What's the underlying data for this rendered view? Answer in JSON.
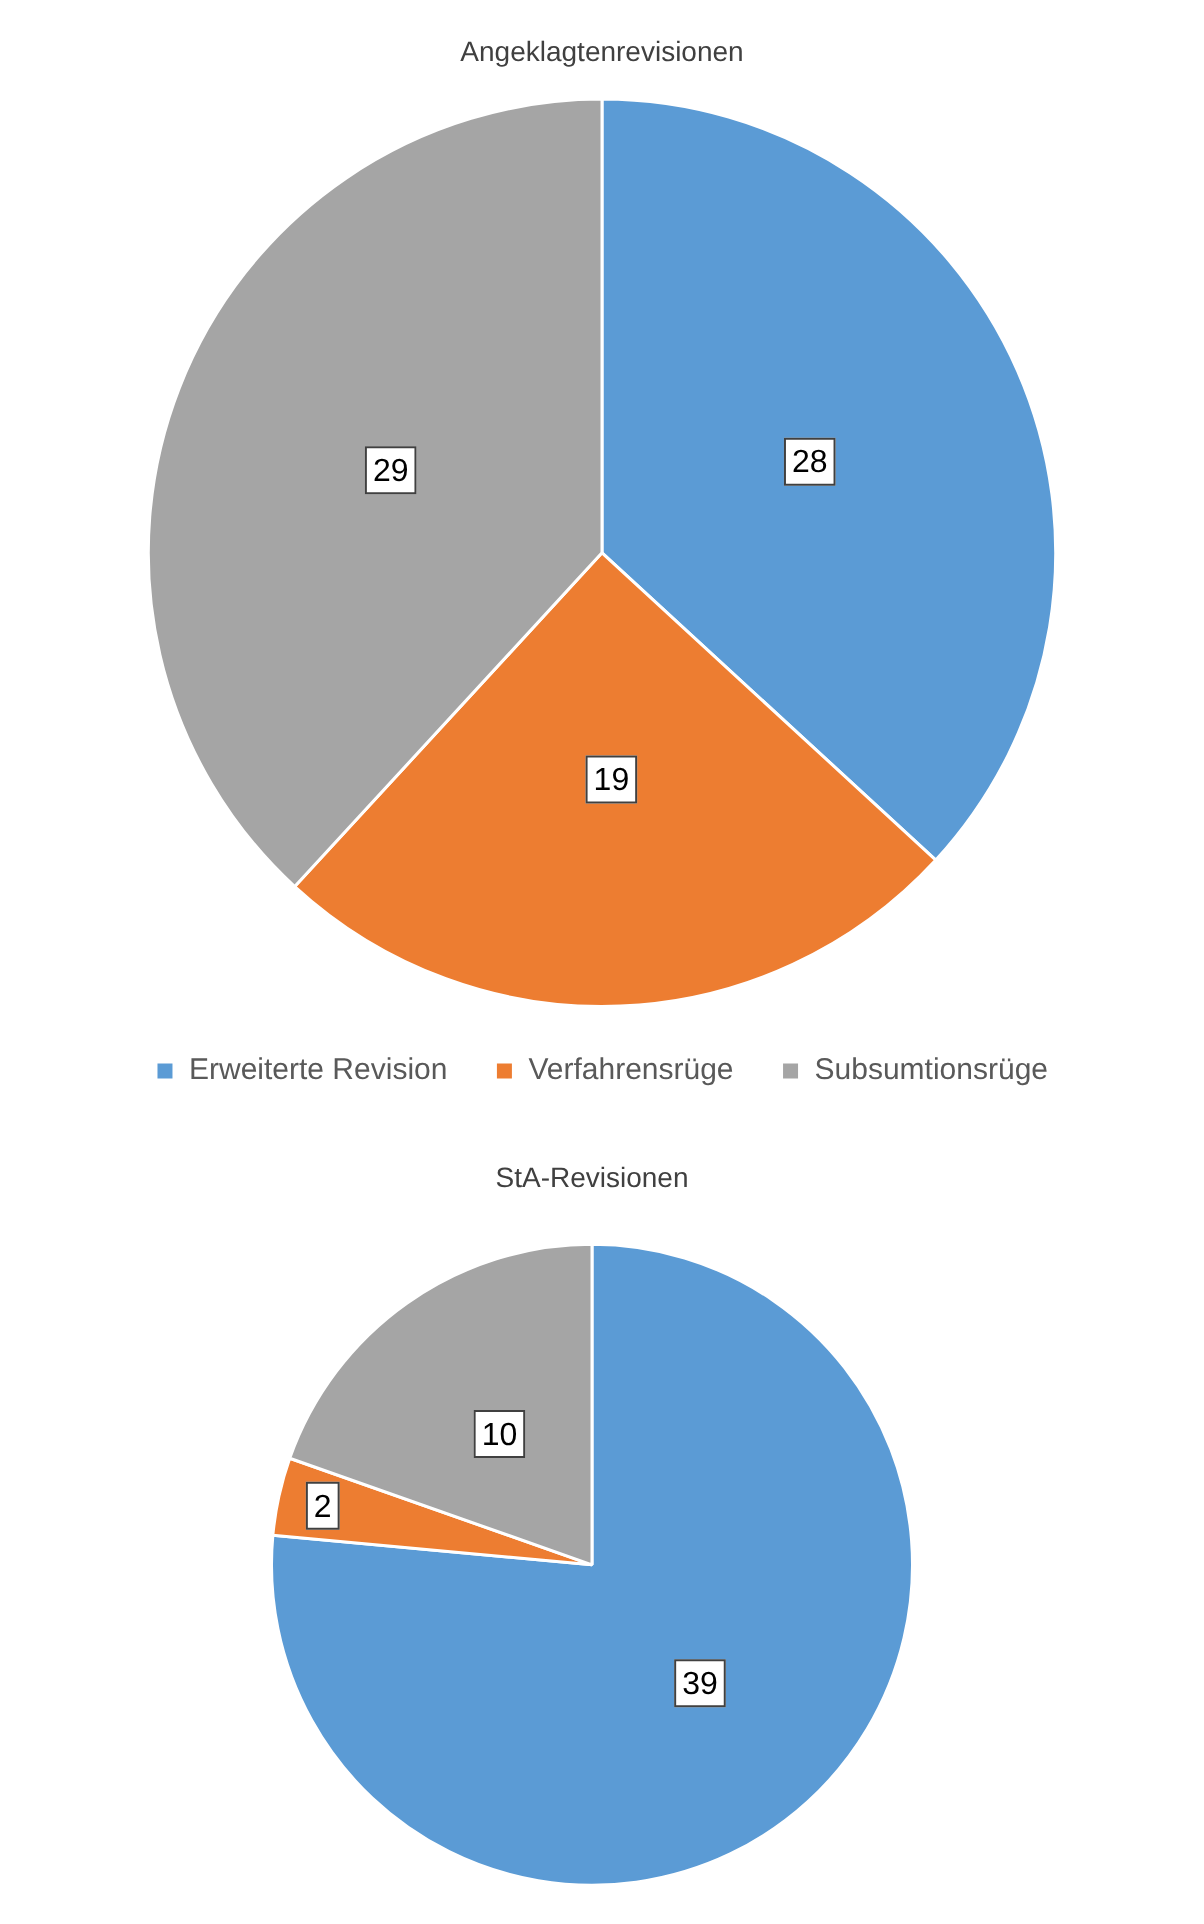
{
  "chart_data": [
    {
      "type": "pie",
      "title": "Angeklagtenrevisionen",
      "categories": [
        "Erweiterte Revision",
        "Verfahrensrüge",
        "Subsumtionsrüge"
      ],
      "values": [
        28,
        19,
        29
      ],
      "colors": [
        "#5b9bd5",
        "#ed7d31",
        "#a5a5a5"
      ],
      "data_labels": true,
      "legend": "bottom"
    },
    {
      "type": "pie",
      "title": "StA-Revisionen",
      "categories": [
        null,
        null,
        null
      ],
      "values": [
        39,
        2,
        10
      ],
      "colors": [
        "#5b9bd5",
        "#ed7d31",
        "#a5a5a5"
      ],
      "data_labels": true,
      "legend": false
    }
  ]
}
